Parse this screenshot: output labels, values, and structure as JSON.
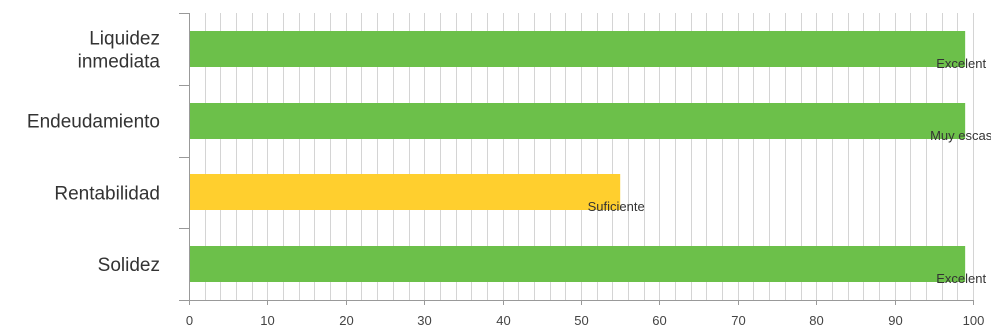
{
  "chart_data": {
    "type": "bar",
    "orientation": "horizontal",
    "categories": [
      [
        "Liquidez",
        "inmediata"
      ],
      [
        "Endeudamiento"
      ],
      [
        "Rentabilidad"
      ],
      [
        "Solidez"
      ]
    ],
    "values": [
      99,
      99,
      55,
      99
    ],
    "data_labels": [
      "Excelent",
      "Muy escas",
      "Suficiente",
      "Excelent"
    ],
    "bar_colors": [
      "#6cc04a",
      "#6cc04a",
      "#ffcf2e",
      "#6cc04a"
    ],
    "xlim": [
      0,
      100
    ],
    "xticks": [
      0,
      10,
      20,
      30,
      40,
      50,
      60,
      70,
      80,
      90,
      100
    ],
    "minor_ticks_per_major": 5,
    "grid": true,
    "grid_color": "#d4d4d4",
    "axis_color": "#999999",
    "title": "",
    "xlabel": "",
    "ylabel": ""
  }
}
